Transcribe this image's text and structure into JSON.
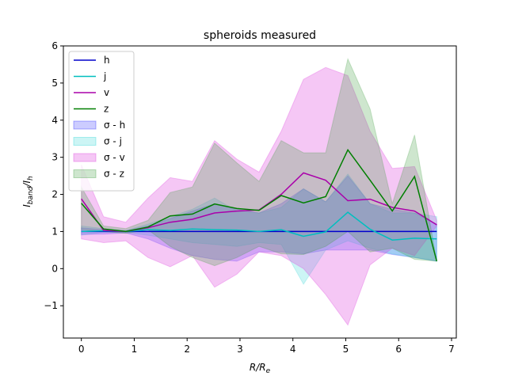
{
  "chart_data": {
    "type": "line",
    "title": "spheroids measured",
    "xlabel": "R/R",
    "xlabel_sub": "e",
    "ylabel": "I",
    "ylabel_sub1": "band",
    "ylabel_mid": "/I",
    "ylabel_sub2": "h",
    "xlim": [
      -0.34,
      7.09
    ],
    "ylim": [
      -1.87,
      6.0
    ],
    "xticks": [
      0,
      1,
      2,
      3,
      4,
      5,
      6,
      7
    ],
    "xtick_labels": [
      "0",
      "1",
      "2",
      "3",
      "4",
      "5",
      "6",
      "7"
    ],
    "yticks": [
      -1,
      0,
      1,
      2,
      3,
      4,
      5,
      6
    ],
    "ytick_labels": [
      "−1",
      "0",
      "1",
      "2",
      "3",
      "4",
      "5",
      "6"
    ],
    "grid": false,
    "legend_position": "upper left",
    "x": [
      0.0,
      0.42,
      0.84,
      1.26,
      1.68,
      2.1,
      2.52,
      2.94,
      3.36,
      3.78,
      4.2,
      4.62,
      5.04,
      5.46,
      5.88,
      6.3,
      6.72
    ],
    "series": [
      {
        "name": "h",
        "color": "#0000cc",
        "values": [
          1.0,
          1.0,
          1.0,
          1.0,
          1.0,
          1.0,
          1.0,
          1.0,
          1.0,
          1.0,
          1.0,
          1.0,
          1.0,
          1.0,
          1.0,
          1.0,
          1.0
        ]
      },
      {
        "name": "j",
        "color": "#00bfbf",
        "values": [
          1.0,
          1.02,
          1.0,
          1.05,
          1.03,
          1.07,
          1.05,
          1.04,
          1.0,
          1.05,
          0.87,
          0.99,
          1.52,
          1.06,
          0.77,
          0.82,
          0.8
        ]
      },
      {
        "name": "v",
        "color": "#aa00aa",
        "values": [
          1.88,
          1.03,
          1.0,
          1.1,
          1.25,
          1.33,
          1.5,
          1.55,
          1.58,
          2.0,
          2.58,
          2.38,
          1.83,
          1.87,
          1.65,
          1.55,
          1.18
        ]
      },
      {
        "name": "z",
        "color": "#007f00",
        "values": [
          1.76,
          1.07,
          1.0,
          1.12,
          1.42,
          1.47,
          1.74,
          1.62,
          1.57,
          1.97,
          1.77,
          1.94,
          3.2,
          2.38,
          1.55,
          2.48,
          0.2
        ]
      }
    ],
    "bands": [
      {
        "name": "σ - h",
        "color": "#0000ff",
        "alpha": 0.2,
        "lower": [
          0.92,
          0.93,
          0.96,
          0.8,
          0.55,
          0.35,
          0.25,
          0.2,
          0.45,
          0.45,
          0.4,
          0.5,
          0.5,
          0.5,
          0.38,
          0.3,
          0.2
        ],
        "upper": [
          1.1,
          1.05,
          1.02,
          1.15,
          1.35,
          1.55,
          1.75,
          1.6,
          1.5,
          1.75,
          2.15,
          1.8,
          2.5,
          1.75,
          1.6,
          1.5,
          1.2
        ]
      },
      {
        "name": "σ - j",
        "color": "#00cccc",
        "alpha": 0.2,
        "lower": [
          0.9,
          0.98,
          0.97,
          0.9,
          0.8,
          0.7,
          0.65,
          0.6,
          0.7,
          0.65,
          -0.42,
          0.5,
          0.75,
          0.55,
          0.4,
          0.3,
          0.2
        ],
        "upper": [
          1.15,
          1.08,
          1.03,
          1.2,
          1.4,
          1.6,
          1.9,
          1.55,
          1.5,
          1.65,
          2.15,
          1.8,
          2.55,
          1.75,
          1.5,
          1.5,
          1.4
        ]
      },
      {
        "name": "σ - v",
        "color": "#dd44dd",
        "alpha": 0.3,
        "lower": [
          0.8,
          0.7,
          0.75,
          0.3,
          0.05,
          0.35,
          -0.5,
          -0.15,
          0.45,
          0.35,
          0.0,
          -0.7,
          -1.52,
          0.1,
          0.55,
          0.35,
          1.15
        ],
        "upper": [
          2.8,
          1.4,
          1.25,
          1.9,
          2.45,
          2.35,
          3.45,
          2.95,
          2.6,
          3.7,
          5.1,
          5.42,
          5.2,
          3.7,
          2.7,
          2.75,
          1.3
        ]
      },
      {
        "name": "σ - z",
        "color": "#3c9c3c",
        "alpha": 0.25,
        "lower": [
          1.05,
          1.0,
          0.95,
          1.05,
          0.6,
          0.3,
          0.08,
          0.3,
          0.6,
          0.4,
          0.38,
          0.6,
          1.0,
          0.45,
          0.55,
          0.25,
          0.2
        ],
        "upper": [
          2.2,
          1.15,
          1.08,
          1.3,
          2.05,
          2.2,
          3.38,
          2.85,
          2.35,
          3.45,
          3.12,
          3.12,
          5.65,
          4.3,
          1.75,
          3.6,
          0.2
        ]
      }
    ]
  }
}
